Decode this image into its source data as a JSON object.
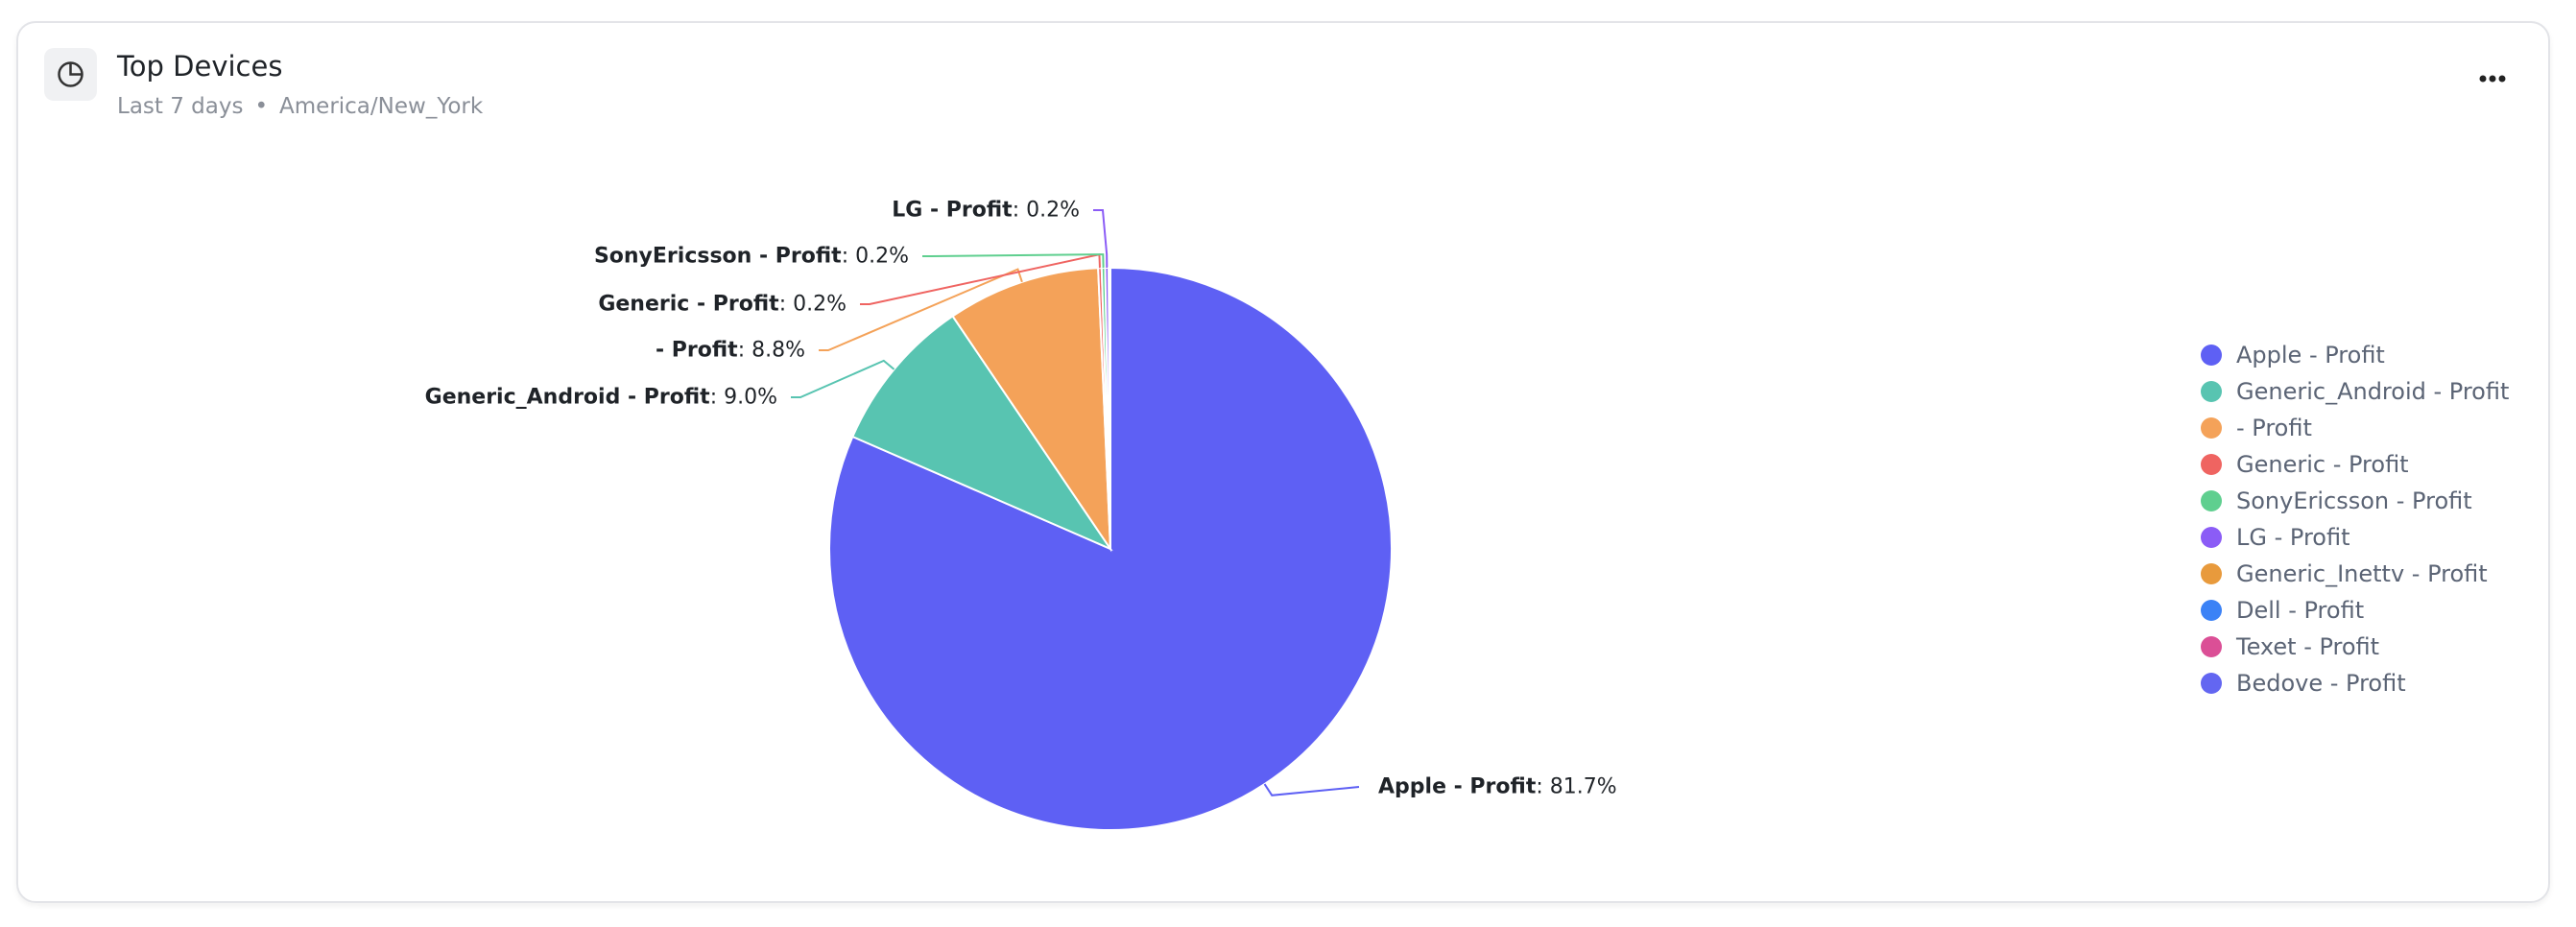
{
  "header": {
    "title": "Top Devices",
    "range": "Last 7 days",
    "timezone": "America/New_York"
  },
  "chart_data": {
    "type": "pie",
    "categories": [
      "Apple - Profit",
      "Generic_Android - Profit",
      "- Profit",
      "Generic - Profit",
      "SonyEricsson - Profit",
      "LG - Profit",
      "Generic_Inettv - Profit",
      "Dell - Profit",
      "Texet - Profit",
      "Bedove - Profit"
    ],
    "values": [
      81.7,
      9.0,
      8.8,
      0.2,
      0.2,
      0.2,
      0.1,
      0,
      0,
      0
    ],
    "value_labels": [
      "81.7%",
      "9.0%",
      "8.8%",
      "0.2%",
      "0.2%",
      "0.2%",
      null,
      null,
      null,
      null
    ],
    "colors": [
      "#5e60f4",
      "#58c4b1",
      "#f4a259",
      "#ef6461",
      "#5fcf8f",
      "#8b5cf6",
      "#e89a3c",
      "#3b82f6",
      "#db4f96",
      "#6366f1"
    ],
    "legend": "right"
  }
}
